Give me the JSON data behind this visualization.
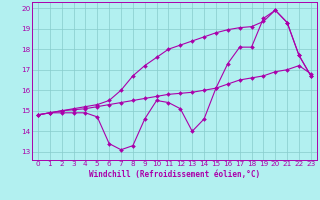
{
  "xlabel": "Windchill (Refroidissement éolien,°C)",
  "background_color": "#b2f0f0",
  "line_color": "#aa00aa",
  "grid_color": "#88cccc",
  "xlim": [
    -0.5,
    23.5
  ],
  "ylim": [
    12.6,
    20.3
  ],
  "xticks": [
    0,
    1,
    2,
    3,
    4,
    5,
    6,
    7,
    8,
    9,
    10,
    11,
    12,
    13,
    14,
    15,
    16,
    17,
    18,
    19,
    20,
    21,
    22,
    23
  ],
  "yticks": [
    13,
    14,
    15,
    16,
    17,
    18,
    19,
    20
  ],
  "line1_y": [
    14.8,
    14.9,
    14.9,
    14.9,
    14.9,
    14.7,
    13.4,
    13.1,
    13.3,
    14.6,
    15.5,
    15.4,
    15.1,
    14.0,
    14.6,
    16.1,
    17.3,
    18.1,
    18.1,
    19.5,
    19.9,
    19.3,
    17.7,
    16.7
  ],
  "line2_y": [
    14.8,
    14.9,
    15.0,
    15.05,
    15.1,
    15.2,
    15.3,
    15.4,
    15.5,
    15.6,
    15.7,
    15.8,
    15.85,
    15.9,
    16.0,
    16.1,
    16.3,
    16.5,
    16.6,
    16.7,
    16.9,
    17.0,
    17.2,
    16.8
  ],
  "line3_y": [
    14.8,
    14.9,
    15.0,
    15.1,
    15.2,
    15.3,
    15.5,
    16.0,
    16.7,
    17.2,
    17.6,
    18.0,
    18.2,
    18.4,
    18.6,
    18.8,
    18.95,
    19.05,
    19.1,
    19.35,
    19.9,
    19.3,
    17.7,
    16.7
  ]
}
